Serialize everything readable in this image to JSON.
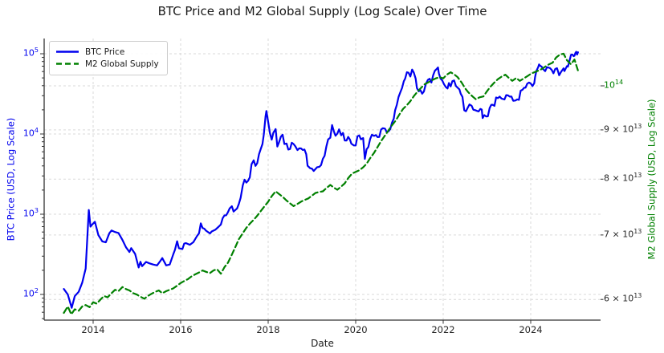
{
  "title": "BTC Price and M2 Global Supply (Log Scale) Over Time",
  "colors": {
    "btc_blue": "#0000ee",
    "m2_green": "#008000",
    "grid": "#d9d9d9",
    "spine": "#333333",
    "tick_text": "#262626"
  },
  "legend": {
    "items": [
      {
        "label": "BTC Price",
        "color": "#0000ee",
        "style": "solid"
      },
      {
        "label": "M2 Global Supply",
        "color": "#008000",
        "style": "dashed"
      }
    ]
  },
  "chart_data": {
    "type": "line",
    "title": "BTC Price and M2 Global Supply (Log Scale) Over Time",
    "xlabel": "Date",
    "ylabel_left": "BTC Price (USD, Log Scale)",
    "ylabel_right": "M2 Global Supply (USD, Log Scale)",
    "grid": true,
    "x_range_years": [
      2012.9,
      2025.6
    ],
    "x_ticks": [
      {
        "label": "2014",
        "value": 2014
      },
      {
        "label": "2016",
        "value": 2016
      },
      {
        "label": "2018",
        "value": 2018
      },
      {
        "label": "2020",
        "value": 2020
      },
      {
        "label": "2022",
        "value": 2022
      },
      {
        "label": "2024",
        "value": 2024
      }
    ],
    "left_axis": {
      "scale": "log",
      "color": "#0000ee",
      "ticks": [
        {
          "label": "10^2",
          "value": 100.0
        },
        {
          "label": "10^3",
          "value": 1000.0
        },
        {
          "label": "10^4",
          "value": 10000.0
        },
        {
          "label": "10^5",
          "value": 100000.0
        }
      ]
    },
    "right_axis": {
      "scale": "log",
      "color": "#008000",
      "ticks": [
        {
          "label": "10^14",
          "value": 100000000000000.0,
          "major": true
        },
        {
          "label": "9 × 10^13",
          "value": 90000000000000.0,
          "major": false
        },
        {
          "label": "8 × 10^13",
          "value": 80000000000000.0,
          "major": false
        },
        {
          "label": "7 × 10^13",
          "value": 70000000000000.0,
          "major": false
        },
        {
          "label": "6 × 10^13",
          "value": 60000000000000.0,
          "major": false
        }
      ]
    },
    "series": [
      {
        "name": "BTC Price",
        "axis": "left",
        "color": "#0000ee",
        "style": "solid",
        "x": [
          2013.33,
          2013.42,
          2013.51,
          2013.58,
          2013.67,
          2013.75,
          2013.83,
          2013.9,
          2013.94,
          2013.98,
          2014.04,
          2014.12,
          2014.21,
          2014.29,
          2014.37,
          2014.42,
          2014.5,
          2014.58,
          2014.67,
          2014.75,
          2014.83,
          2014.87,
          2014.96,
          2015.04,
          2015.08,
          2015.12,
          2015.21,
          2015.29,
          2015.37,
          2015.46,
          2015.54,
          2015.58,
          2015.67,
          2015.75,
          2015.83,
          2015.87,
          2015.92,
          2015.96,
          2016.04,
          2016.08,
          2016.12,
          2016.21,
          2016.29,
          2016.37,
          2016.42,
          2016.46,
          2016.5,
          2016.54,
          2016.58,
          2016.67,
          2016.71,
          2016.79,
          2016.87,
          2016.92,
          2016.96,
          2017.0,
          2017.04,
          2017.08,
          2017.12,
          2017.17,
          2017.21,
          2017.29,
          2017.33,
          2017.37,
          2017.42,
          2017.46,
          2017.5,
          2017.54,
          2017.58,
          2017.62,
          2017.67,
          2017.71,
          2017.75,
          2017.79,
          2017.83,
          2017.87,
          2017.9,
          2017.94,
          2017.96,
          2018.0,
          2018.04,
          2018.08,
          2018.12,
          2018.17,
          2018.21,
          2018.25,
          2018.29,
          2018.33,
          2018.37,
          2018.42,
          2018.46,
          2018.5,
          2018.54,
          2018.58,
          2018.62,
          2018.67,
          2018.71,
          2018.75,
          2018.79,
          2018.83,
          2018.87,
          2018.9,
          2018.96,
          2019.0,
          2019.04,
          2019.12,
          2019.17,
          2019.21,
          2019.25,
          2019.29,
          2019.33,
          2019.37,
          2019.42,
          2019.46,
          2019.5,
          2019.54,
          2019.58,
          2019.62,
          2019.67,
          2019.71,
          2019.75,
          2019.79,
          2019.83,
          2019.87,
          2019.9,
          2019.96,
          2020.0,
          2020.04,
          2020.08,
          2020.12,
          2020.17,
          2020.21,
          2020.25,
          2020.29,
          2020.33,
          2020.37,
          2020.42,
          2020.46,
          2020.5,
          2020.54,
          2020.58,
          2020.62,
          2020.67,
          2020.71,
          2020.75,
          2020.79,
          2020.83,
          2020.87,
          2020.9,
          2020.94,
          2020.98,
          2021.02,
          2021.06,
          2021.1,
          2021.13,
          2021.17,
          2021.21,
          2021.25,
          2021.29,
          2021.33,
          2021.37,
          2021.4,
          2021.44,
          2021.48,
          2021.52,
          2021.56,
          2021.6,
          2021.65,
          2021.69,
          2021.73,
          2021.77,
          2021.81,
          2021.85,
          2021.88,
          2021.9,
          2021.94,
          2021.98,
          2022.02,
          2022.06,
          2022.1,
          2022.13,
          2022.17,
          2022.21,
          2022.25,
          2022.29,
          2022.33,
          2022.37,
          2022.4,
          2022.44,
          2022.48,
          2022.52,
          2022.56,
          2022.6,
          2022.65,
          2022.69,
          2022.73,
          2022.77,
          2022.81,
          2022.85,
          2022.88,
          2022.9,
          2022.94,
          2022.98,
          2023.02,
          2023.06,
          2023.1,
          2023.13,
          2023.17,
          2023.21,
          2023.25,
          2023.29,
          2023.33,
          2023.37,
          2023.4,
          2023.44,
          2023.48,
          2023.52,
          2023.56,
          2023.6,
          2023.65,
          2023.69,
          2023.73,
          2023.77,
          2023.81,
          2023.85,
          2023.88,
          2023.92,
          2023.96,
          2024.0,
          2024.04,
          2024.08,
          2024.1,
          2024.13,
          2024.17,
          2024.19,
          2024.21,
          2024.25,
          2024.29,
          2024.33,
          2024.37,
          2024.4,
          2024.44,
          2024.48,
          2024.52,
          2024.56,
          2024.6,
          2024.63,
          2024.65,
          2024.69,
          2024.73,
          2024.75,
          2024.77,
          2024.81,
          2024.83,
          2024.85,
          2024.87,
          2024.9,
          2024.92,
          2024.94,
          2024.96,
          2024.98,
          2025.0,
          2025.02,
          2025.04,
          2025.06,
          2025.08
        ],
        "values": [
          117,
          100,
          68,
          95,
          108,
          140,
          210,
          1130,
          700,
          745,
          805,
          550,
          458,
          447,
          580,
          627,
          600,
          583,
          478,
          387,
          338,
          378,
          320,
          217,
          255,
          225,
          254,
          244,
          236,
          230,
          263,
          284,
          230,
          236,
          314,
          360,
          460,
          377,
          368,
          430,
          437,
          416,
          448,
          531,
          580,
          770,
          673,
          660,
          624,
          576,
          610,
          640,
          700,
          745,
          890,
          964,
          970,
          1060,
          1180,
          1255,
          1080,
          1180,
          1347,
          1600,
          2286,
          2700,
          2480,
          2600,
          2875,
          4200,
          4703,
          4000,
          4338,
          5600,
          6468,
          7500,
          9916,
          16500,
          19350,
          14156,
          10221,
          8500,
          10397,
          11500,
          6973,
          7900,
          9240,
          9800,
          7494,
          7600,
          6404,
          6500,
          7780,
          7500,
          7037,
          6300,
          6625,
          6600,
          6317,
          6400,
          5600,
          4017,
          3742,
          3700,
          3457,
          3854,
          3900,
          4105,
          4900,
          5350,
          7000,
          8574,
          9000,
          12900,
          10817,
          9500,
          10085,
          11400,
          9630,
          10300,
          8293,
          8300,
          9199,
          8500,
          7569,
          7193,
          7200,
          9350,
          9600,
          8599,
          8900,
          4900,
          6438,
          6900,
          8658,
          9800,
          9461,
          9700,
          9137,
          9200,
          11351,
          11800,
          11655,
          10500,
          10784,
          11500,
          13797,
          15500,
          19713,
          23000,
          28994,
          33114,
          37600,
          45240,
          49000,
          58918,
          58000,
          52000,
          63500,
          57750,
          49000,
          37332,
          34000,
          35040,
          31800,
          34000,
          41626,
          47166,
          48800,
          43790,
          54000,
          61318,
          64400,
          67500,
          57005,
          49000,
          46306,
          41500,
          38483,
          36900,
          43193,
          39200,
          45538,
          46500,
          39700,
          37714,
          36000,
          31792,
          29000,
          19785,
          19200,
          21200,
          23336,
          22500,
          20049,
          19800,
          19431,
          19100,
          20495,
          20200,
          15787,
          17168,
          16547,
          16600,
          21000,
          23139,
          23147,
          22400,
          28478,
          28000,
          29268,
          27700,
          27219,
          26900,
          30477,
          30300,
          29230,
          29300,
          25931,
          26100,
          26967,
          26600,
          34667,
          35500,
          37712,
          37800,
          42265,
          43800,
          42582,
          39500,
          43000,
          51000,
          61198,
          68000,
          73600,
          71333,
          69000,
          63800,
          60636,
          67800,
          67491,
          66200,
          62678,
          57000,
          64619,
          66000,
          58969,
          53900,
          59000,
          63329,
          65800,
          60800,
          67000,
          70215,
          69000,
          75600,
          88000,
          96449,
          98000,
          97000,
          93429,
          94400,
          102000,
          106000,
          97700,
          104500
        ]
      },
      {
        "name": "M2 Global Supply",
        "axis": "right",
        "color": "#008000",
        "style": "dashed",
        "x": [
          2013.33,
          2013.42,
          2013.5,
          2013.58,
          2013.67,
          2013.75,
          2013.83,
          2013.92,
          2014.0,
          2014.08,
          2014.17,
          2014.25,
          2014.33,
          2014.42,
          2014.5,
          2014.58,
          2014.67,
          2014.75,
          2014.83,
          2014.92,
          2015.0,
          2015.08,
          2015.17,
          2015.25,
          2015.33,
          2015.42,
          2015.5,
          2015.58,
          2015.67,
          2015.75,
          2015.83,
          2015.92,
          2016.0,
          2016.08,
          2016.17,
          2016.25,
          2016.33,
          2016.42,
          2016.5,
          2016.58,
          2016.67,
          2016.75,
          2016.83,
          2016.92,
          2017.0,
          2017.08,
          2017.17,
          2017.25,
          2017.33,
          2017.42,
          2017.5,
          2017.58,
          2017.67,
          2017.75,
          2017.83,
          2017.92,
          2018.0,
          2018.08,
          2018.17,
          2018.25,
          2018.33,
          2018.42,
          2018.5,
          2018.58,
          2018.67,
          2018.75,
          2018.83,
          2018.92,
          2019.0,
          2019.08,
          2019.17,
          2019.25,
          2019.33,
          2019.42,
          2019.5,
          2019.58,
          2019.67,
          2019.75,
          2019.83,
          2019.92,
          2020.0,
          2020.08,
          2020.17,
          2020.25,
          2020.33,
          2020.42,
          2020.5,
          2020.58,
          2020.67,
          2020.75,
          2020.83,
          2020.92,
          2021.0,
          2021.08,
          2021.17,
          2021.25,
          2021.33,
          2021.42,
          2021.5,
          2021.58,
          2021.67,
          2021.75,
          2021.83,
          2021.92,
          2022.0,
          2022.08,
          2022.17,
          2022.25,
          2022.33,
          2022.42,
          2022.5,
          2022.58,
          2022.67,
          2022.75,
          2022.83,
          2022.92,
          2023.0,
          2023.08,
          2023.17,
          2023.25,
          2023.33,
          2023.42,
          2023.5,
          2023.58,
          2023.67,
          2023.75,
          2023.83,
          2023.92,
          2024.0,
          2024.08,
          2024.17,
          2024.25,
          2024.33,
          2024.42,
          2024.5,
          2024.58,
          2024.67,
          2024.75,
          2024.83,
          2024.92,
          2025.0,
          2025.08
        ],
        "values": [
          58100000000000.0,
          59000000000000.0,
          57900000000000.0,
          58600000000000.0,
          58400000000000.0,
          59000000000000.0,
          59200000000000.0,
          58900000000000.0,
          59600000000000.0,
          59400000000000.0,
          60000000000000.0,
          60500000000000.0,
          60300000000000.0,
          60900000000000.0,
          61400000000000.0,
          61200000000000.0,
          61800000000000.0,
          61500000000000.0,
          61300000000000.0,
          60900000000000.0,
          60700000000000.0,
          60400000000000.0,
          60100000000000.0,
          60500000000000.0,
          60800000000000.0,
          61100000000000.0,
          61300000000000.0,
          60900000000000.0,
          61200000000000.0,
          61400000000000.0,
          61600000000000.0,
          62000000000000.0,
          62400000000000.0,
          62700000000000.0,
          63000000000000.0,
          63400000000000.0,
          63700000000000.0,
          64000000000000.0,
          64300000000000.0,
          64100000000000.0,
          63900000000000.0,
          64300000000000.0,
          64500000000000.0,
          63800000000000.0,
          64800000000000.0,
          65500000000000.0,
          66800000000000.0,
          68000000000000.0,
          69300000000000.0,
          70300000000000.0,
          71200000000000.0,
          71900000000000.0,
          72600000000000.0,
          73300000000000.0,
          74100000000000.0,
          75000000000000.0,
          75800000000000.0,
          76800000000000.0,
          77700000000000.0,
          77200000000000.0,
          76700000000000.0,
          76000000000000.0,
          75500000000000.0,
          75000000000000.0,
          75400000000000.0,
          75800000000000.0,
          76100000000000.0,
          76400000000000.0,
          76900000000000.0,
          77400000000000.0,
          77600000000000.0,
          77700000000000.0,
          78300000000000.0,
          78900000000000.0,
          78400000000000.0,
          78000000000000.0,
          78600000000000.0,
          79200000000000.0,
          80200000000000.0,
          81100000000000.0,
          81400000000000.0,
          81700000000000.0,
          82300000000000.0,
          83000000000000.0,
          84100000000000.0,
          85200000000000.0,
          86400000000000.0,
          87600000000000.0,
          88800000000000.0,
          89900000000000.0,
          91000000000000.0,
          92100000000000.0,
          93400000000000.0,
          94600000000000.0,
          95500000000000.0,
          96400000000000.0,
          97600000000000.0,
          98700000000000.0,
          99600000000000.0,
          100400000000000.0,
          100900000000000.0,
          101400000000000.0,
          101800000000000.0,
          102100000000000.0,
          101800000000000.0,
          102700000000000.0,
          103300000000000.0,
          102800000000000.0,
          102100000000000.0,
          100800000000000.0,
          99400000000000.0,
          98400000000000.0,
          97500000000000.0,
          96800000000000.0,
          97300000000000.0,
          97500000000000.0,
          98700000000000.0,
          99800000000000.0,
          100800000000000.0,
          101600000000000.0,
          102200000000000.0,
          102700000000000.0,
          101900000000000.0,
          101200000000000.0,
          101900000000000.0,
          101200000000000.0,
          101700000000000.0,
          102300000000000.0,
          102900000000000.0,
          103300000000000.0,
          103700000000000.0,
          104100000000000.0,
          104700000000000.0,
          105300000000000.0,
          105700000000000.0,
          107000000000000.0,
          107800000000000.0,
          108000000000000.0,
          106300000000000.0,
          105300000000000.0,
          106500000000000.0,
          103700000000000.0
        ]
      }
    ]
  }
}
